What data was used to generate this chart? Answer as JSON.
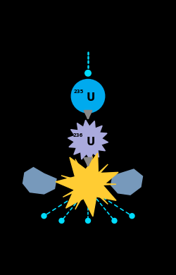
{
  "bg_color": "#000000",
  "neutron_color": "#00ddff",
  "uranium235_color": "#00aaee",
  "uranium236_color": "#aaaadd",
  "arrow_color": "#888888",
  "explosion_yellow": "#ffcc33",
  "fission_product_color": "#7799bb",
  "label_235": "235",
  "label_U1": "U",
  "label_236": "236",
  "label_U2": "U",
  "fig_w": 2.5,
  "fig_h": 3.9,
  "dpi": 100
}
